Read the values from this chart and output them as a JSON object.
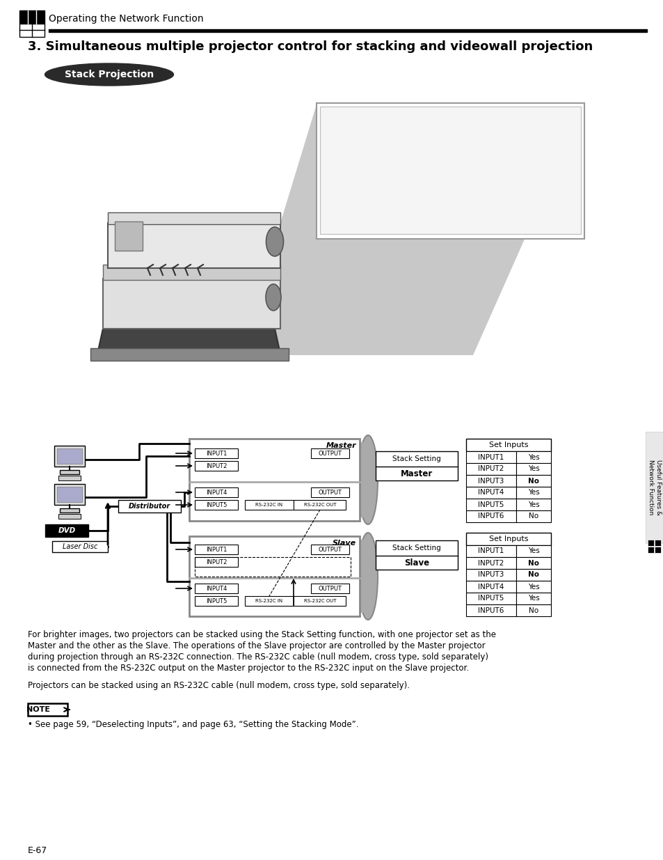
{
  "page_title": "Operating the Network Function",
  "section_title": "3. Simultaneous multiple projector control for stacking and videowall projection",
  "stack_projection_label": "Stack Projection",
  "master_label": "Master",
  "slave_label": "Slave",
  "distributor_label": "Distributor",
  "dvd_label": "DVD",
  "laser_disc_label": "Laser Disc",
  "master_inputs": [
    "INPUT1",
    "INPUT2",
    "INPUT4",
    "INPUT5"
  ],
  "slave_inputs": [
    "INPUT1",
    "INPUT2",
    "INPUT4",
    "INPUT5"
  ],
  "rs232c_in": "RS-232C IN",
  "rs232c_out": "RS-232C OUT",
  "master_table_header": "Set Inputs",
  "master_table_rows": [
    [
      "INPUT1",
      "Yes",
      false
    ],
    [
      "INPUT2",
      "Yes",
      false
    ],
    [
      "INPUT3",
      "No",
      true
    ],
    [
      "INPUT4",
      "Yes",
      false
    ],
    [
      "INPUT5",
      "Yes",
      false
    ],
    [
      "INPUT6",
      "No",
      false
    ]
  ],
  "slave_table_header": "Set Inputs",
  "slave_table_rows": [
    [
      "INPUT1",
      "Yes",
      false
    ],
    [
      "INPUT2",
      "No",
      true
    ],
    [
      "INPUT3",
      "No",
      true
    ],
    [
      "INPUT4",
      "Yes",
      false
    ],
    [
      "INPUT5",
      "Yes",
      false
    ],
    [
      "INPUT6",
      "No",
      false
    ]
  ],
  "body_text1": "For brighter images, two projectors can be stacked using the Stack Setting function, with one projector set as the",
  "body_text2": "Master and the other as the Slave. The operations of the Slave projector are controlled by the Master projector",
  "body_text3": "during projection through an RS-232C connection. The RS-232C cable (null modem, cross type, sold separately)",
  "body_text4": "is connected from the RS-232C output on the Master projector to the RS-232C input on the Slave projector.",
  "body_text5": "Projectors can be stacked using an RS-232C cable (null modem, cross type, sold separately).",
  "note_label": "NOTE",
  "note_text": "• See page 59, “Deselecting Inputs”, and page 63, “Setting the Stacking Mode”.",
  "page_number": "E-67",
  "side_label1": "Useful Features &",
  "side_label2": "Network Function",
  "bg_color": "#ffffff"
}
